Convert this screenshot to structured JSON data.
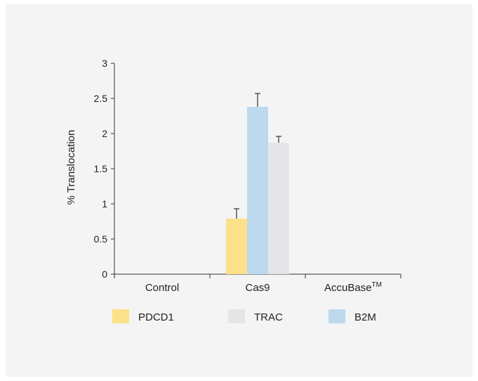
{
  "chart_data": {
    "type": "bar",
    "ylabel": "% Translocation",
    "xlabel": "",
    "title": "",
    "ylim": [
      0,
      3
    ],
    "yticks": [
      "0",
      "0.5",
      "1",
      "1.5",
      "2",
      "2.5",
      "3"
    ],
    "categories": [
      "Control",
      "Cas9",
      "AccuBase"
    ],
    "category_superscripts": [
      "",
      "",
      "TM"
    ],
    "series": [
      {
        "name": "PDCD1",
        "color": "#fde08a",
        "values": [
          0,
          0.79,
          0
        ],
        "errors": [
          0,
          0.14,
          0
        ]
      },
      {
        "name": "B2M",
        "color": "#bcd9ee",
        "values": [
          0,
          2.38,
          0
        ],
        "errors": [
          0,
          0.19,
          0
        ]
      },
      {
        "name": "TRAC",
        "color": "#e5e5e7",
        "values": [
          0,
          1.87,
          0
        ],
        "errors": [
          0,
          0.09,
          0
        ]
      }
    ],
    "legend": {
      "placement": "bottom",
      "order": [
        "PDCD1",
        "TRAC",
        "B2M"
      ]
    },
    "grid": false
  }
}
